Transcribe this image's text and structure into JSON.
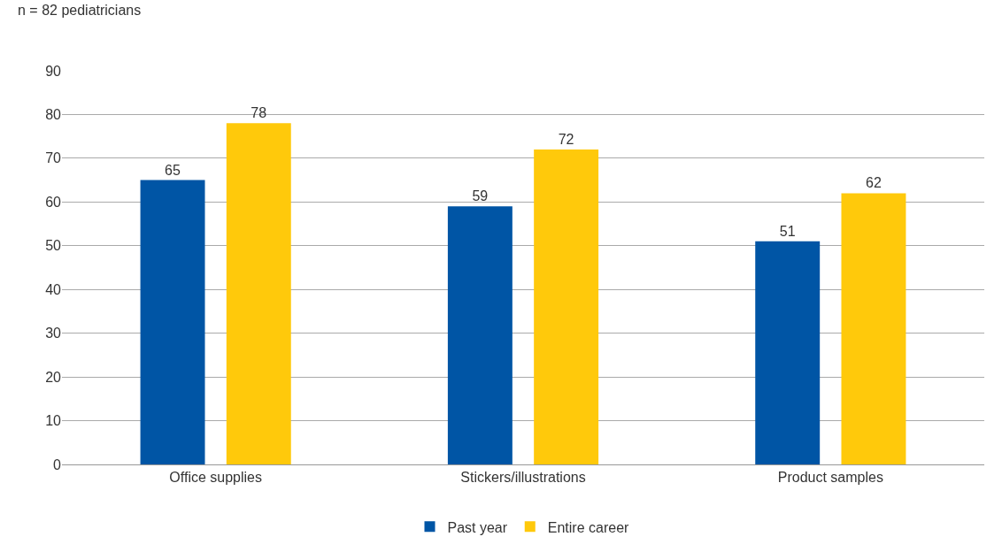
{
  "chart_data": {
    "type": "bar",
    "annotations": [
      "n = 82 pediatricians"
    ],
    "categories": [
      "Office supplies",
      "Stickers/illustrations",
      "Product samples"
    ],
    "series": [
      {
        "name": "Past year",
        "color": "#0055a5",
        "values": [
          65,
          59,
          51
        ]
      },
      {
        "name": "Entire career",
        "color": "#ffc90b",
        "values": [
          78,
          72,
          62
        ]
      }
    ],
    "ylim": [
      0,
      90
    ],
    "yticks": [
      0,
      10,
      20,
      30,
      40,
      50,
      60,
      70,
      80,
      90
    ],
    "grid": "y",
    "legend": "bottom",
    "data_labels": true
  }
}
